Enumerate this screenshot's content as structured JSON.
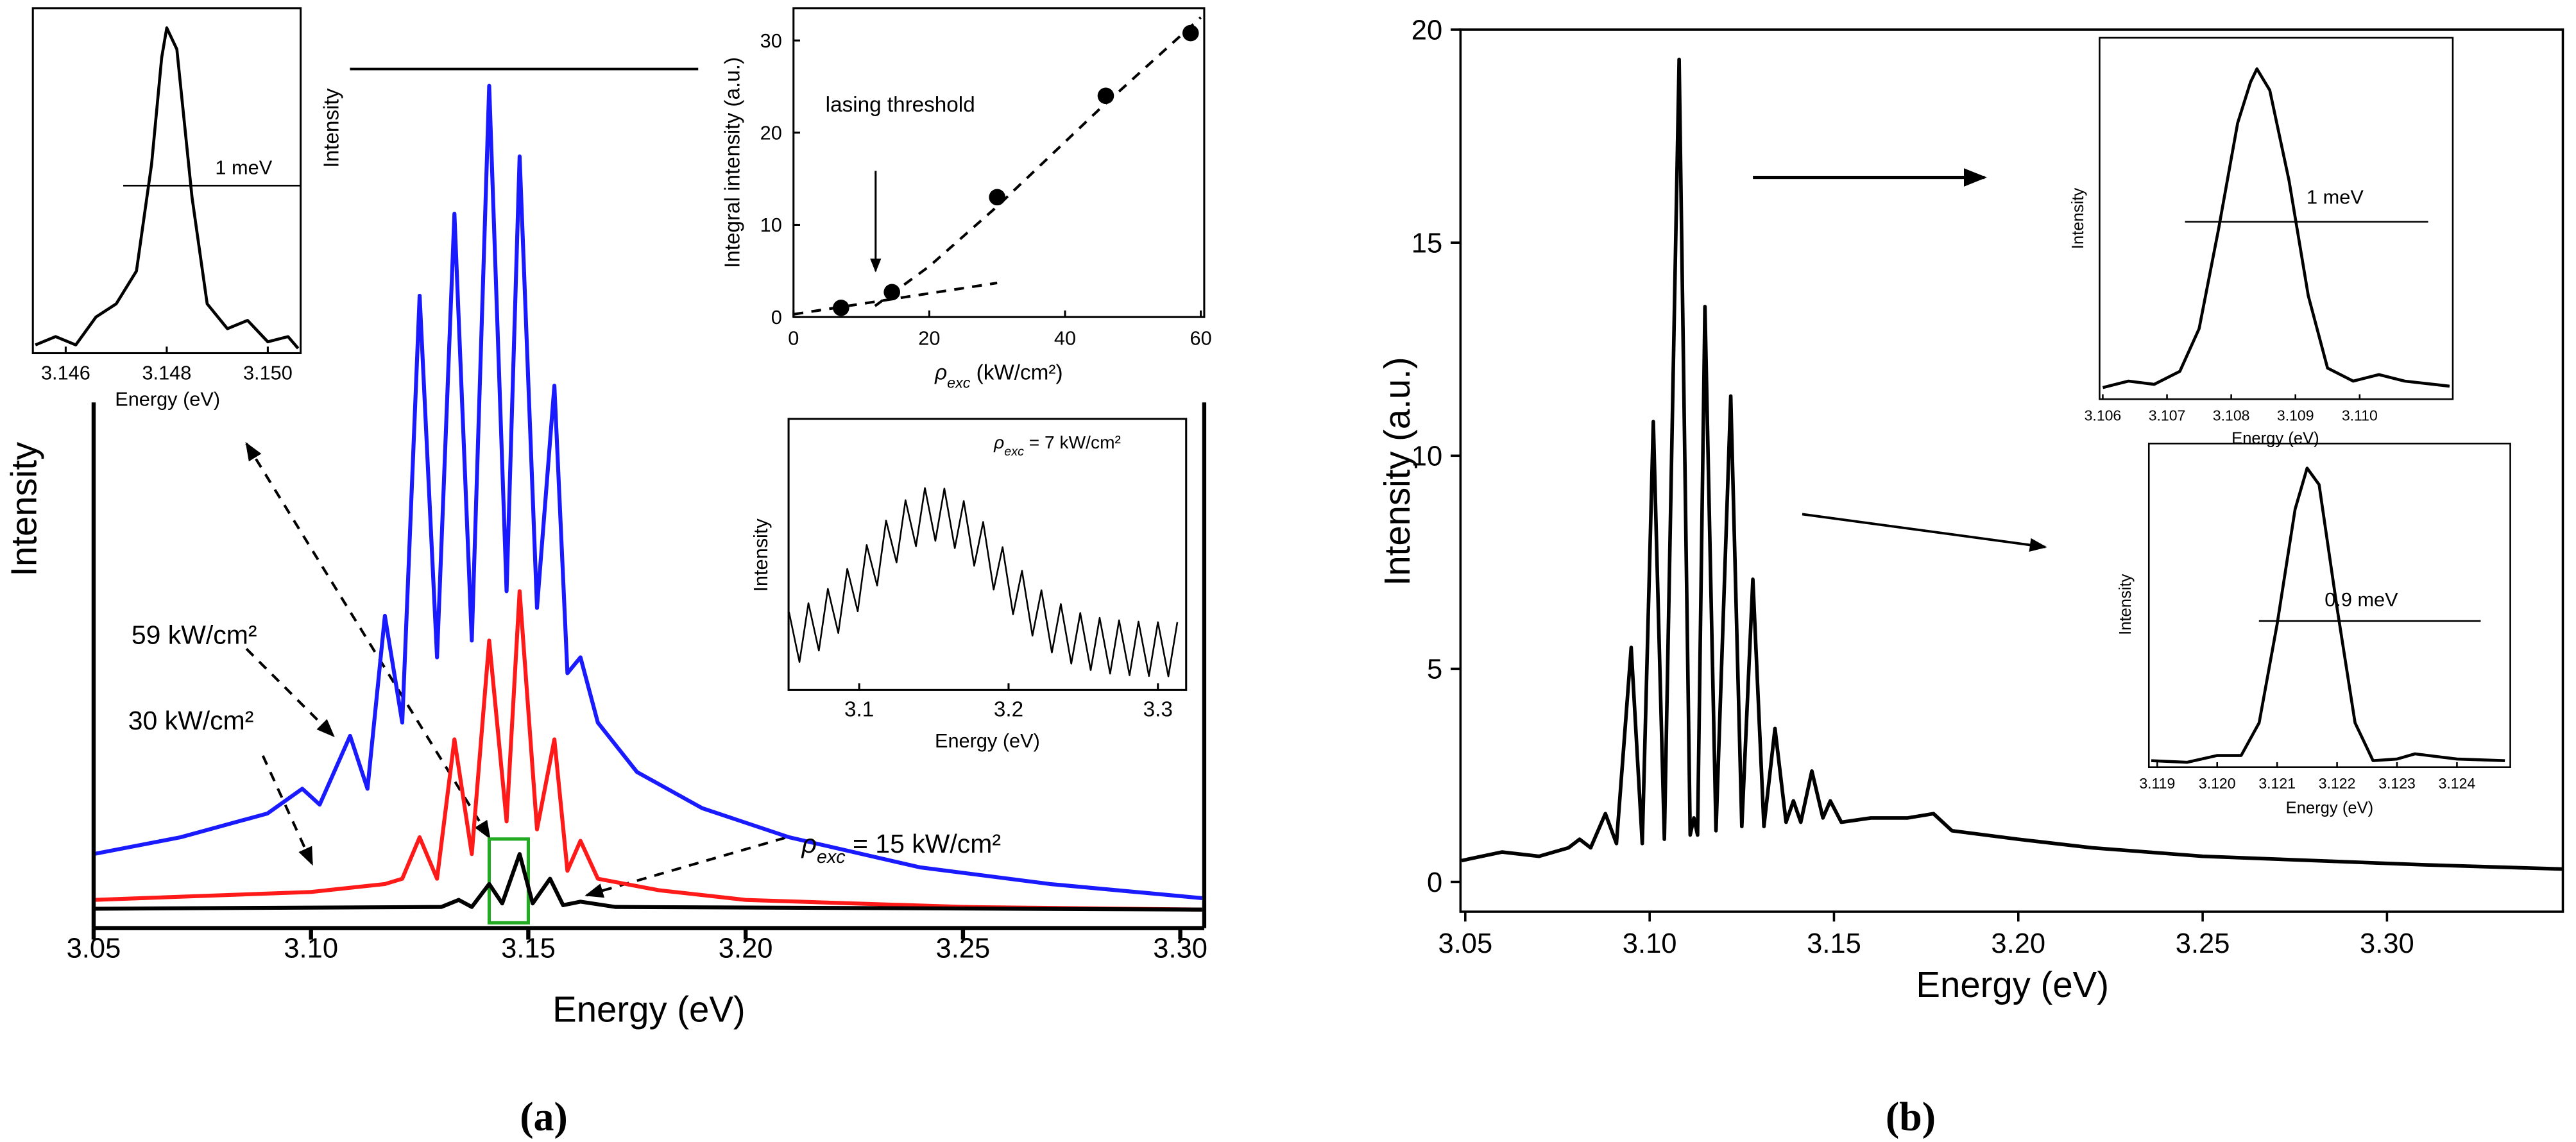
{
  "captions": [
    "(a)",
    "(b)"
  ],
  "chart_data": [
    {
      "type": "line",
      "xlabel": "Energy (eV)",
      "ylabel": "Intensity",
      "xlim": [
        3.05,
        3.3055
      ],
      "ylim": [
        -1.5,
        100
      ],
      "xticks": [
        3.05,
        {
          "value": 3.1,
          "label": "3.10"
        },
        3.15,
        {
          "value": 3.2,
          "label": "3.20"
        },
        3.25,
        {
          "value": 3.3,
          "label": "3.30"
        }
      ],
      "series": [
        {
          "color": "#1a1aff",
          "x": [
            3.05,
            3.07,
            3.09,
            3.098,
            3.102,
            3.109,
            3.113,
            3.117,
            3.121,
            3.125,
            3.129,
            3.133,
            3.137,
            3.141,
            3.145,
            3.148,
            3.152,
            3.156,
            3.159,
            3.162,
            3.166,
            3.175,
            3.19,
            3.21,
            3.24,
            3.27,
            3.305
          ],
          "values": [
            6.9,
            8.8,
            11.5,
            14.3,
            12.5,
            20.3,
            14.3,
            33.9,
            21.8,
            70.2,
            29.2,
            79.5,
            31.1,
            94.0,
            36.7,
            86.0,
            34.8,
            60.0,
            27.4,
            29.2,
            21.8,
            16.2,
            12.1,
            8.8,
            5.4,
            3.5,
            1.9
          ]
        },
        {
          "color": "#ff1a1a",
          "x": [
            3.05,
            3.1,
            3.117,
            3.121,
            3.125,
            3.129,
            3.133,
            3.137,
            3.141,
            3.145,
            3.148,
            3.152,
            3.156,
            3.159,
            3.162,
            3.166,
            3.18,
            3.2,
            3.25,
            3.305
          ],
          "values": [
            1.7,
            2.6,
            3.5,
            4.1,
            8.8,
            4.1,
            19.9,
            6.9,
            31.1,
            10.6,
            36.7,
            9.7,
            19.9,
            5.0,
            8.4,
            4.1,
            2.8,
            1.7,
            0.9,
            0.6
          ]
        },
        {
          "color": "#000000",
          "x": [
            3.05,
            3.13,
            3.134,
            3.137,
            3.141,
            3.144,
            3.148,
            3.151,
            3.155,
            3.158,
            3.162,
            3.17,
            3.305
          ],
          "values": [
            0.7,
            0.9,
            1.7,
            0.9,
            3.5,
            1.3,
            6.9,
            1.3,
            4.1,
            1.1,
            1.5,
            0.9,
            0.6
          ]
        }
      ],
      "highlight": {
        "x": [
          3.141,
          3.15
        ],
        "y": [
          -0.9,
          8.6
        ],
        "color": "#22aa22"
      },
      "annotations": [
        "59 kW/cm²",
        "30 kW/cm²",
        {
          "symbol": "ρ",
          "subscript": "exc",
          "text": " = 15 kW/cm²"
        },
        "Intensity"
      ]
    },
    {
      "type": "line",
      "xlabel": "Energy (eV)",
      "xlim": [
        3.14535,
        3.15065
      ],
      "ylim": [
        0,
        100
      ],
      "xticks": [
        3.146,
        3.148,
        {
          "value": 3.15,
          "label": "3.150"
        }
      ],
      "series": [
        {
          "color": "#000000",
          "x": [
            3.1454,
            3.1458,
            3.1462,
            3.1466,
            3.147,
            3.1474,
            3.1477,
            3.1479,
            3.148,
            3.1482,
            3.1485,
            3.1488,
            3.1492,
            3.1496,
            3.15,
            3.1504,
            3.1506
          ],
          "values": [
            2.4,
            4.8,
            2.4,
            10.5,
            14.3,
            23.8,
            54.8,
            85.7,
            94.3,
            88.1,
            45.2,
            14.3,
            7.1,
            9.5,
            3.3,
            4.8,
            1.4
          ]
        }
      ],
      "annotations": [
        "1 meV"
      ]
    },
    {
      "type": "scatter",
      "xlabel": {
        "symbol": "ρ",
        "subscript": "exc",
        "text": " (kW/cm²)"
      },
      "ylabel": "Integral intensity (a.u.)",
      "xlim": [
        0,
        60.5
      ],
      "ylim": [
        0,
        33.5
      ],
      "xticks": [
        0,
        20,
        40,
        60
      ],
      "yticks": [
        0,
        10,
        20,
        30
      ],
      "x": [
        7,
        14.5,
        30,
        46,
        58.5
      ],
      "values": [
        1,
        2.7,
        13,
        24,
        30.8
      ],
      "color": "#000000",
      "fits": [
        {
          "x": [
            0,
            30
          ],
          "values": [
            0.3,
            3.7
          ]
        },
        {
          "x": [
            12,
            20,
            30,
            45,
            60
          ],
          "values": [
            1.2,
            5.5,
            12,
            22.5,
            32.5
          ]
        }
      ],
      "annotations": [
        "lasing threshold"
      ]
    },
    {
      "type": "line",
      "xlabel": "Energy (eV)",
      "ylabel": "Intensity",
      "xlim": [
        3.0527,
        3.3189
      ],
      "ylim": [
        0,
        100
      ],
      "xticks": [
        3.1,
        3.2,
        3.3
      ],
      "series": [
        {
          "color": "#000000",
          "x": [
            3.053,
            3.06,
            3.066,
            3.073,
            3.079,
            3.086,
            3.092,
            3.099,
            3.105,
            3.112,
            3.118,
            3.125,
            3.131,
            3.138,
            3.144,
            3.151,
            3.157,
            3.164,
            3.17,
            3.177,
            3.183,
            3.19,
            3.196,
            3.203,
            3.209,
            3.216,
            3.222,
            3.229,
            3.235,
            3.242,
            3.248,
            3.255,
            3.261,
            3.268,
            3.274,
            3.281,
            3.287,
            3.294,
            3.3,
            3.307,
            3.313
          ],
          "values": [
            28.7,
            10.3,
            32,
            14.5,
            37.3,
            21,
            44.7,
            29,
            53.5,
            38.5,
            62.5,
            47,
            70,
            53,
            74.5,
            55,
            74.3,
            52.3,
            69.7,
            45.8,
            62,
            37,
            52.7,
            27.9,
            44,
            20,
            36.8,
            13.8,
            31.7,
            9.7,
            28.4,
            7.3,
            26.6,
            6,
            25.7,
            5.4,
            25.2,
            5.1,
            25,
            5,
            25
          ]
        }
      ],
      "annotations": [
        {
          "symbol": "ρ",
          "subscript": "exc",
          "text": " = 7 kW/cm²"
        }
      ]
    },
    {
      "type": "line",
      "xlabel": "Energy (eV)",
      "ylabel": "Intensity (a.u.)",
      "xlim": [
        3.0487,
        3.3477
      ],
      "ylim": [
        -0.7,
        20
      ],
      "xticks": [
        3.05,
        {
          "value": 3.1,
          "label": "3.10"
        },
        3.15,
        {
          "value": 3.2,
          "label": "3.20"
        },
        3.25,
        {
          "value": 3.3,
          "label": "3.30"
        }
      ],
      "yticks": [
        0,
        5,
        10,
        15,
        20
      ],
      "series": [
        {
          "color": "#000000",
          "x": [
            3.049,
            3.06,
            3.07,
            3.078,
            3.081,
            3.084,
            3.088,
            3.091,
            3.095,
            3.098,
            3.101,
            3.104,
            3.108,
            3.111,
            3.112,
            3.113,
            3.115,
            3.118,
            3.122,
            3.125,
            3.128,
            3.131,
            3.134,
            3.137,
            3.139,
            3.141,
            3.144,
            3.147,
            3.149,
            3.152,
            3.16,
            3.17,
            3.177,
            3.182,
            3.2,
            3.22,
            3.25,
            3.28,
            3.31,
            3.3477
          ],
          "values": [
            0.5,
            0.7,
            0.6,
            0.8,
            1.0,
            0.8,
            1.6,
            0.9,
            5.5,
            0.9,
            10.8,
            1.0,
            19.3,
            1.1,
            1.5,
            1.1,
            13.5,
            1.2,
            11.4,
            1.3,
            7.1,
            1.3,
            3.6,
            1.4,
            1.9,
            1.4,
            2.6,
            1.5,
            1.9,
            1.4,
            1.5,
            1.5,
            1.6,
            1.2,
            1.0,
            0.8,
            0.6,
            0.5,
            0.4,
            0.3
          ]
        }
      ]
    },
    {
      "type": "line",
      "xlabel": "Energy (eV)",
      "ylabel": "Intensity",
      "xlim": [
        3.10595,
        3.11145
      ],
      "ylim": [
        0,
        100
      ],
      "xticks": [
        3.106,
        3.107,
        3.108,
        3.109,
        {
          "value": 3.11,
          "label": "3.110"
        }
      ],
      "series": [
        {
          "color": "#000000",
          "x": [
            3.106,
            3.1064,
            3.1068,
            3.1072,
            3.1075,
            3.1078,
            3.1081,
            3.1083,
            3.1084,
            3.1086,
            3.1089,
            3.1092,
            3.1095,
            3.1099,
            3.1103,
            3.1107,
            3.1114
          ],
          "values": [
            3.2,
            5,
            4.1,
            7.7,
            19.5,
            46.8,
            76.4,
            87.7,
            91.4,
            85.5,
            60.5,
            28.6,
            8.6,
            5,
            6.8,
            5,
            3.6
          ]
        }
      ],
      "annotations": [
        "1 meV"
      ]
    },
    {
      "type": "line",
      "xlabel": "Energy (eV)",
      "ylabel": "Intensity",
      "xlim": [
        3.11886,
        3.12489
      ],
      "ylim": [
        0,
        100
      ],
      "xticks": [
        3.119,
        {
          "value": 3.12,
          "label": "3.120"
        },
        3.121,
        3.122,
        3.123,
        3.124
      ],
      "series": [
        {
          "color": "#000000",
          "x": [
            3.1189,
            3.1195,
            3.12,
            3.1204,
            3.1207,
            3.121,
            3.1213,
            3.1215,
            3.1217,
            3.122,
            3.1223,
            3.1226,
            3.123,
            3.1233,
            3.124,
            3.1248
          ],
          "values": [
            2,
            1.5,
            3.6,
            3.6,
            13.7,
            44.2,
            79.7,
            92.4,
            87.3,
            49.2,
            13.7,
            2,
            2.5,
            4.1,
            2.5,
            2
          ]
        }
      ],
      "annotations": [
        "0.9 meV"
      ]
    }
  ]
}
